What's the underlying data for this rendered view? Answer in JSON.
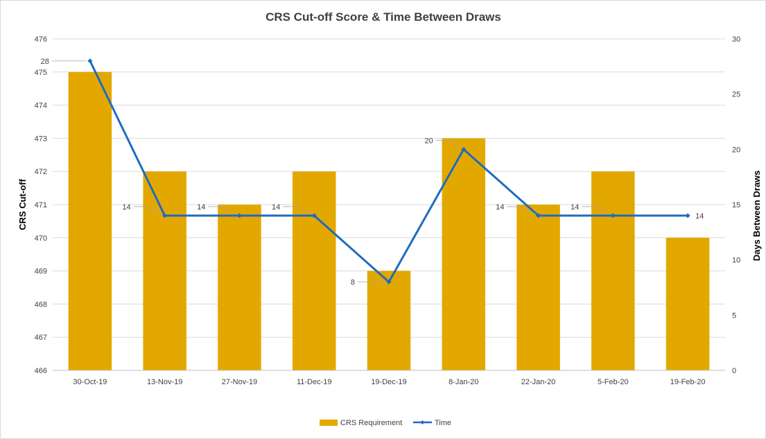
{
  "chart_data": {
    "type": "bar",
    "title": "CRS Cut-off Score & Time Between Draws",
    "categories": [
      "30-Oct-19",
      "13-Nov-19",
      "27-Nov-19",
      "11-Dec-19",
      "19-Dec-19",
      "8-Jan-20",
      "22-Jan-20",
      "5-Feb-20",
      "19-Feb-20"
    ],
    "series": [
      {
        "name": "CRS Requirement",
        "type": "bar",
        "axis": "left",
        "color": "#E3A800",
        "values": [
          475,
          472,
          471,
          472,
          469,
          473,
          471,
          472,
          470
        ]
      },
      {
        "name": "Time",
        "type": "line",
        "axis": "right",
        "color": "#1F6BBF",
        "values": [
          28,
          14,
          14,
          14,
          8,
          20,
          14,
          14,
          14
        ],
        "data_labels": [
          "28",
          "14",
          "14",
          "14",
          "8",
          "20",
          "14",
          "14",
          "14"
        ]
      }
    ],
    "ylabel": "CRS Cut-off",
    "y2label": "Days Between Draws",
    "ylim": [
      466,
      476
    ],
    "y2lim": [
      0,
      30
    ],
    "yticks": [
      "466",
      "467",
      "468",
      "469",
      "470",
      "471",
      "472",
      "473",
      "474",
      "475",
      "476"
    ],
    "y2ticks": [
      "0",
      "5",
      "10",
      "15",
      "20",
      "25",
      "30"
    ],
    "grid": true,
    "legend_position": "bottom"
  }
}
